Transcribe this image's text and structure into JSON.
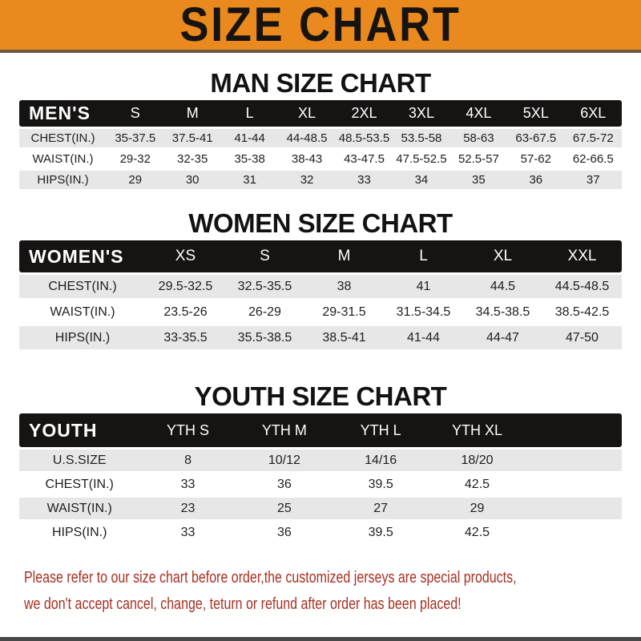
{
  "banner": {
    "title": "SIZE CHART"
  },
  "sections": [
    {
      "heading": "MAN SIZE CHART",
      "table": {
        "header_label": "MEN'S",
        "columns": [
          "S",
          "M",
          "L",
          "XL",
          "2XL",
          "3XL",
          "4XL",
          "5XL",
          "6XL"
        ],
        "rows": [
          {
            "label": "CHEST(IN.)",
            "values": [
              "35-37.5",
              "37.5-41",
              "41-44",
              "44-48.5",
              "48.5-53.5",
              "53.5-58",
              "58-63",
              "63-67.5",
              "67.5-72"
            ]
          },
          {
            "label": "WAIST(IN.)",
            "values": [
              "29-32",
              "32-35",
              "35-38",
              "38-43",
              "43-47.5",
              "47.5-52.5",
              "52.5-57",
              "57-62",
              "62-66.5"
            ]
          },
          {
            "label": "HIPS(IN.)",
            "values": [
              "29",
              "30",
              "31",
              "32",
              "33",
              "34",
              "35",
              "36",
              "37"
            ]
          }
        ]
      }
    },
    {
      "heading": "WOMEN SIZE CHART",
      "table": {
        "header_label": "WOMEN'S",
        "columns": [
          "XS",
          "S",
          "M",
          "L",
          "XL",
          "XXL"
        ],
        "rows": [
          {
            "label": "CHEST(IN.)",
            "values": [
              "29.5-32.5",
              "32.5-35.5",
              "38",
              "41",
              "44.5",
              "44.5-48.5"
            ]
          },
          {
            "label": "WAIST(IN.)",
            "values": [
              "23.5-26",
              "26-29",
              "29-31.5",
              "31.5-34.5",
              "34.5-38.5",
              "38.5-42.5"
            ]
          },
          {
            "label": "HIPS(IN.)",
            "values": [
              "33-35.5",
              "35.5-38.5",
              "38.5-41",
              "41-44",
              "44-47",
              "47-50"
            ]
          }
        ]
      }
    },
    {
      "heading": "YOUTH SIZE CHART",
      "table": {
        "header_label": "YOUTH",
        "columns": [
          "YTH S",
          "YTH M",
          "YTH L",
          "YTH XL"
        ],
        "rows": [
          {
            "label": "U.S.SIZE",
            "values": [
              "8",
              "10/12",
              "14/16",
              "18/20"
            ]
          },
          {
            "label": "CHEST(IN.)",
            "values": [
              "33",
              "36",
              "39.5",
              "42.5"
            ]
          },
          {
            "label": "WAIST(IN.)",
            "values": [
              "23",
              "25",
              "27",
              "29"
            ]
          },
          {
            "label": "HIPS(IN.)",
            "values": [
              "33",
              "36",
              "39.5",
              "42.5"
            ]
          }
        ]
      }
    }
  ],
  "footer": {
    "line1": "Please refer to our size chart before order,the customized jerseys are special products,",
    "line2": "we don't accept cancel, change, teturn or refund after order has been placed!"
  },
  "colors": {
    "banner_bg": "#E9891E",
    "banner_text": "#161310",
    "table_header_bg": "#161313",
    "row_stripe_bg": "#E7E7E7",
    "note_text": "#A63022"
  }
}
